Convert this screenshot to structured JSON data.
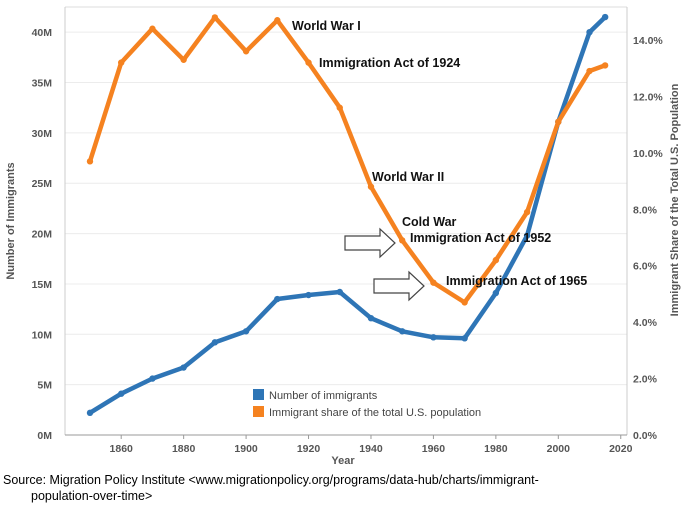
{
  "chart_data": {
    "type": "line",
    "xlabel": "Year",
    "ylabel_left": "Number of Immigrants",
    "ylabel_right": "Immigrant Share of the Total U.S. Population",
    "x_ticks": [
      "1860",
      "1880",
      "1900",
      "1920",
      "1940",
      "1960",
      "1980",
      "2000",
      "2020"
    ],
    "y_left_ticks": [
      "0M",
      "5M",
      "10M",
      "15M",
      "20M",
      "25M",
      "30M",
      "35M",
      "40M"
    ],
    "y_right_ticks": [
      "0.0%",
      "2.0%",
      "4.0%",
      "6.0%",
      "8.0%",
      "10.0%",
      "12.0%",
      "14.0%"
    ],
    "xlim": [
      1842,
      2022
    ],
    "ylim_left": [
      0,
      42.5
    ],
    "ylim_right": [
      0,
      15.17
    ],
    "grid": "horizontal",
    "legend_position": "bottom-center",
    "series": [
      {
        "name": "Number of immigrants",
        "color": "#2e75b6",
        "axis": "left",
        "x": [
          1850,
          1860,
          1870,
          1880,
          1890,
          1900,
          1910,
          1920,
          1930,
          1940,
          1950,
          1960,
          1970,
          1980,
          1990,
          2000,
          2010,
          2015
        ],
        "values": [
          2.2,
          4.1,
          5.6,
          6.7,
          9.2,
          10.3,
          13.5,
          13.9,
          14.2,
          11.6,
          10.3,
          9.7,
          9.6,
          14.1,
          19.8,
          31.1,
          40.0,
          41.5
        ]
      },
      {
        "name": "Immigrant share of the total U.S. population",
        "color": "#f58220",
        "axis": "right",
        "x": [
          1850,
          1860,
          1870,
          1880,
          1890,
          1900,
          1910,
          1920,
          1930,
          1940,
          1950,
          1960,
          1970,
          1980,
          1990,
          2000,
          2010,
          2015
        ],
        "values": [
          9.7,
          13.2,
          14.4,
          13.3,
          14.8,
          13.6,
          14.7,
          13.2,
          11.6,
          8.8,
          6.9,
          5.4,
          4.7,
          6.2,
          7.9,
          11.1,
          12.9,
          13.1
        ]
      }
    ],
    "annotations": [
      {
        "text": "World War I"
      },
      {
        "text": "Immigration Act of 1924"
      },
      {
        "text": "World War II"
      },
      {
        "text": "Cold War"
      },
      {
        "text": "Immigration Act of 1952"
      },
      {
        "text": "Immigration Act of 1965"
      }
    ]
  },
  "source": {
    "line1": "Source: Migration Policy Institute  <www.migrationpolicy.org/programs/data-hub/charts/immigrant-",
    "line2": "population-over-time>"
  }
}
